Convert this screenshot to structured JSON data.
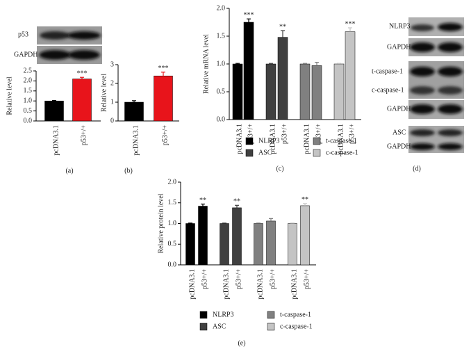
{
  "panels": [
    "(a)",
    "(b)",
    "(c)",
    "(d)",
    "(e)"
  ],
  "blots": {
    "a": [
      "p53",
      "GAPDH"
    ],
    "d": [
      "NLRP3",
      "GAPDH",
      "t-caspase-1",
      "c-caspase-1",
      "GAPDH",
      "ASC",
      "GAPDH"
    ]
  },
  "chart_data": [
    {
      "type": "bar",
      "y_label": "Relative level",
      "categories": [
        "pcDNA3.1",
        "p53+/+"
      ],
      "values": [
        1.0,
        2.1
      ],
      "errors": [
        0.02,
        0.08
      ],
      "annotations": [
        null,
        "***"
      ],
      "colors": [
        "#000000",
        "#e8141b"
      ],
      "ylim": [
        0,
        2.5
      ],
      "yticks": [
        {
          "value": 0,
          "label": "0.0"
        },
        {
          "value": 0.5,
          "label": "0.5"
        },
        {
          "value": 1,
          "label": "1.0"
        },
        {
          "value": 1.5,
          "label": "1.5"
        },
        {
          "value": 2,
          "label": "2.0"
        },
        {
          "value": 2.5,
          "label": "2.5"
        }
      ]
    },
    {
      "type": "bar",
      "y_label": "Relative level",
      "categories": [
        "pcDNA3.1",
        "p53+/+"
      ],
      "values": [
        1.0,
        2.4
      ],
      "errors": [
        0.08,
        0.2
      ],
      "annotations": [
        null,
        "***"
      ],
      "colors": [
        "#000000",
        "#e8141b"
      ],
      "ylim": [
        0,
        3
      ],
      "yticks": [
        0,
        1,
        2,
        3
      ]
    },
    {
      "type": "bar",
      "y_label": "Relative mRNA level",
      "categories": [
        "pcDNA3.1",
        "p53+/+"
      ],
      "series": [
        {
          "name": "NLRP3",
          "color": "#000000",
          "values": [
            1.0,
            1.75
          ],
          "errors": [
            0.01,
            0.06
          ],
          "annotations": [
            null,
            "***"
          ]
        },
        {
          "name": "ASC",
          "color": "#404040",
          "values": [
            1.0,
            1.48
          ],
          "errors": [
            0.01,
            0.12
          ],
          "annotations": [
            null,
            "**"
          ]
        },
        {
          "name": "t-caspase-1",
          "color": "#808080",
          "values": [
            1.0,
            0.97
          ],
          "errors": [
            0.01,
            0.06
          ],
          "annotations": [
            null,
            null
          ]
        },
        {
          "name": "c-caspase-1",
          "color": "#c4c4c4",
          "values": [
            1.0,
            1.58
          ],
          "errors": [
            0.01,
            0.07
          ],
          "annotations": [
            null,
            "***"
          ]
        }
      ],
      "ylim": [
        0,
        2
      ],
      "yticks": [
        {
          "value": 0,
          "label": "0.0"
        },
        {
          "value": 0.5,
          "label": "0.5"
        },
        {
          "value": 1,
          "label": "1.0"
        },
        {
          "value": 1.5,
          "label": "1.5"
        },
        {
          "value": 2,
          "label": "2.0"
        }
      ]
    },
    {
      "type": "bar",
      "y_label": "Relative protein level",
      "categories": [
        "pcDNA3.1",
        "p53+/+"
      ],
      "series": [
        {
          "name": "NLRP3",
          "color": "#000000",
          "values": [
            1.0,
            1.42
          ],
          "errors": [
            0.01,
            0.05
          ],
          "annotations": [
            null,
            "**"
          ]
        },
        {
          "name": "ASC",
          "color": "#404040",
          "values": [
            1.0,
            1.38
          ],
          "errors": [
            0.01,
            0.06
          ],
          "annotations": [
            null,
            "**"
          ]
        },
        {
          "name": "t-caspase-1",
          "color": "#808080",
          "values": [
            1.0,
            1.06
          ],
          "errors": [
            0.01,
            0.06
          ],
          "annotations": [
            null,
            null
          ]
        },
        {
          "name": "c-caspase-1",
          "color": "#c4c4c4",
          "values": [
            1.0,
            1.43
          ],
          "errors": [
            0.01,
            0.05
          ],
          "annotations": [
            null,
            "**"
          ]
        }
      ],
      "ylim": [
        0,
        2
      ],
      "yticks": [
        {
          "value": 0,
          "label": "0.0"
        },
        {
          "value": 0.5,
          "label": "0.5"
        },
        {
          "value": 1,
          "label": "1.0"
        },
        {
          "value": 1.5,
          "label": "1.5"
        },
        {
          "value": 2,
          "label": "2.0"
        }
      ]
    }
  ]
}
